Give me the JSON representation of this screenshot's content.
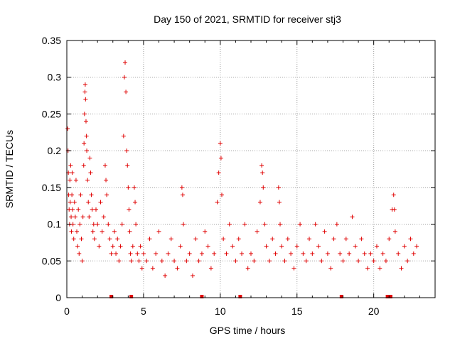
{
  "chart_data": {
    "type": "scatter",
    "title": "Day 150 of 2021, SRMTID for receiver stj3",
    "xlabel": "GPS time / hours",
    "ylabel": "SRMTID / TECUs",
    "xlim": [
      0,
      24
    ],
    "ylim": [
      0,
      0.35
    ],
    "xticks": [
      0,
      5,
      10,
      15,
      20
    ],
    "yticks": [
      0,
      0.05,
      0.1,
      0.15,
      0.2,
      0.25,
      0.3,
      0.35
    ],
    "ytick_labels": [
      "0",
      "0.05",
      "0.1",
      "0.15",
      "0.2",
      "0.25",
      "0.3",
      "0.35"
    ],
    "grid": true,
    "marker": "+",
    "color": "#e00000",
    "gap_markers_x": [
      2.9,
      4.2,
      8.8,
      11.3,
      17.9,
      20.9,
      21.1
    ],
    "series": [
      {
        "name": "SRMTID",
        "points": [
          [
            0.05,
            0.23
          ],
          [
            0.08,
            0.2
          ],
          [
            0.1,
            0.17
          ],
          [
            0.12,
            0.14
          ],
          [
            0.15,
            0.12
          ],
          [
            0.18,
            0.1
          ],
          [
            0.2,
            0.16
          ],
          [
            0.22,
            0.13
          ],
          [
            0.25,
            0.18
          ],
          [
            0.28,
            0.11
          ],
          [
            0.3,
            0.09
          ],
          [
            0.33,
            0.14
          ],
          [
            0.35,
            0.17
          ],
          [
            0.38,
            0.12
          ],
          [
            0.4,
            0.1
          ],
          [
            0.45,
            0.08
          ],
          [
            0.5,
            0.13
          ],
          [
            0.55,
            0.11
          ],
          [
            0.6,
            0.16
          ],
          [
            0.65,
            0.09
          ],
          [
            0.7,
            0.07
          ],
          [
            0.75,
            0.12
          ],
          [
            0.8,
            0.06
          ],
          [
            0.85,
            0.1
          ],
          [
            0.9,
            0.14
          ],
          [
            0.95,
            0.08
          ],
          [
            1.0,
            0.05
          ],
          [
            1.05,
            0.11
          ],
          [
            1.1,
            0.18
          ],
          [
            1.12,
            0.21
          ],
          [
            1.15,
            0.25
          ],
          [
            1.18,
            0.28
          ],
          [
            1.2,
            0.29
          ],
          [
            1.22,
            0.27
          ],
          [
            1.25,
            0.24
          ],
          [
            1.28,
            0.22
          ],
          [
            1.3,
            0.2
          ],
          [
            1.35,
            0.16
          ],
          [
            1.4,
            0.13
          ],
          [
            1.45,
            0.11
          ],
          [
            1.5,
            0.19
          ],
          [
            1.55,
            0.17
          ],
          [
            1.6,
            0.14
          ],
          [
            1.65,
            0.12
          ],
          [
            1.7,
            0.09
          ],
          [
            1.75,
            0.1
          ],
          [
            1.8,
            0.08
          ],
          [
            1.9,
            0.12
          ],
          [
            2.0,
            0.1
          ],
          [
            2.1,
            0.07
          ],
          [
            2.2,
            0.13
          ],
          [
            2.3,
            0.09
          ],
          [
            2.4,
            0.11
          ],
          [
            2.5,
            0.18
          ],
          [
            2.55,
            0.16
          ],
          [
            2.6,
            0.14
          ],
          [
            2.7,
            0.1
          ],
          [
            2.8,
            0.08
          ],
          [
            2.9,
            0.06
          ],
          [
            3.0,
            0.07
          ],
          [
            3.1,
            0.09
          ],
          [
            3.2,
            0.06
          ],
          [
            3.3,
            0.08
          ],
          [
            3.4,
            0.05
          ],
          [
            3.5,
            0.07
          ],
          [
            3.6,
            0.1
          ],
          [
            3.7,
            0.22
          ],
          [
            3.75,
            0.3
          ],
          [
            3.8,
            0.32
          ],
          [
            3.85,
            0.28
          ],
          [
            3.9,
            0.2
          ],
          [
            3.95,
            0.18
          ],
          [
            4.0,
            0.15
          ],
          [
            4.05,
            0.12
          ],
          [
            4.1,
            0.09
          ],
          [
            4.15,
            0.06
          ],
          [
            4.2,
            0.05
          ],
          [
            4.3,
            0.07
          ],
          [
            4.4,
            0.15
          ],
          [
            4.45,
            0.13
          ],
          [
            4.5,
            0.1
          ],
          [
            4.6,
            0.06
          ],
          [
            4.7,
            0.05
          ],
          [
            4.8,
            0.07
          ],
          [
            4.9,
            0.04
          ],
          [
            5.0,
            0.06
          ],
          [
            5.2,
            0.05
          ],
          [
            5.4,
            0.08
          ],
          [
            5.6,
            0.04
          ],
          [
            5.8,
            0.06
          ],
          [
            6.0,
            0.09
          ],
          [
            6.2,
            0.05
          ],
          [
            6.4,
            0.03
          ],
          [
            6.6,
            0.06
          ],
          [
            6.8,
            0.08
          ],
          [
            7.0,
            0.05
          ],
          [
            7.2,
            0.04
          ],
          [
            7.4,
            0.07
          ],
          [
            7.5,
            0.15
          ],
          [
            7.55,
            0.14
          ],
          [
            7.6,
            0.1
          ],
          [
            7.8,
            0.05
          ],
          [
            8.0,
            0.06
          ],
          [
            8.2,
            0.03
          ],
          [
            8.4,
            0.08
          ],
          [
            8.6,
            0.05
          ],
          [
            8.8,
            0.06
          ],
          [
            9.0,
            0.09
          ],
          [
            9.2,
            0.07
          ],
          [
            9.4,
            0.04
          ],
          [
            9.6,
            0.06
          ],
          [
            9.8,
            0.13
          ],
          [
            9.9,
            0.17
          ],
          [
            10.0,
            0.21
          ],
          [
            10.05,
            0.19
          ],
          [
            10.1,
            0.14
          ],
          [
            10.2,
            0.08
          ],
          [
            10.4,
            0.06
          ],
          [
            10.6,
            0.1
          ],
          [
            10.8,
            0.07
          ],
          [
            11.0,
            0.05
          ],
          [
            11.2,
            0.08
          ],
          [
            11.4,
            0.06
          ],
          [
            11.6,
            0.1
          ],
          [
            11.8,
            0.04
          ],
          [
            12.0,
            0.06
          ],
          [
            12.2,
            0.05
          ],
          [
            12.4,
            0.09
          ],
          [
            12.6,
            0.13
          ],
          [
            12.7,
            0.18
          ],
          [
            12.75,
            0.17
          ],
          [
            12.8,
            0.15
          ],
          [
            12.9,
            0.1
          ],
          [
            13.0,
            0.07
          ],
          [
            13.2,
            0.05
          ],
          [
            13.4,
            0.08
          ],
          [
            13.6,
            0.06
          ],
          [
            13.8,
            0.15
          ],
          [
            13.85,
            0.13
          ],
          [
            13.9,
            0.1
          ],
          [
            14.0,
            0.07
          ],
          [
            14.2,
            0.05
          ],
          [
            14.4,
            0.08
          ],
          [
            14.6,
            0.06
          ],
          [
            14.8,
            0.04
          ],
          [
            15.0,
            0.07
          ],
          [
            15.2,
            0.1
          ],
          [
            15.4,
            0.06
          ],
          [
            15.6,
            0.05
          ],
          [
            15.8,
            0.08
          ],
          [
            16.0,
            0.06
          ],
          [
            16.2,
            0.1
          ],
          [
            16.4,
            0.07
          ],
          [
            16.6,
            0.05
          ],
          [
            16.8,
            0.09
          ],
          [
            17.0,
            0.06
          ],
          [
            17.2,
            0.04
          ],
          [
            17.4,
            0.08
          ],
          [
            17.6,
            0.1
          ],
          [
            17.8,
            0.06
          ],
          [
            18.0,
            0.05
          ],
          [
            18.2,
            0.08
          ],
          [
            18.4,
            0.06
          ],
          [
            18.6,
            0.11
          ],
          [
            18.8,
            0.07
          ],
          [
            19.0,
            0.05
          ],
          [
            19.2,
            0.08
          ],
          [
            19.4,
            0.06
          ],
          [
            19.6,
            0.04
          ],
          [
            19.8,
            0.06
          ],
          [
            20.0,
            0.05
          ],
          [
            20.2,
            0.07
          ],
          [
            20.4,
            0.04
          ],
          [
            20.6,
            0.06
          ],
          [
            20.8,
            0.05
          ],
          [
            21.0,
            0.08
          ],
          [
            21.2,
            0.12
          ],
          [
            21.3,
            0.14
          ],
          [
            21.35,
            0.12
          ],
          [
            21.4,
            0.09
          ],
          [
            21.6,
            0.06
          ],
          [
            21.8,
            0.04
          ],
          [
            22.0,
            0.07
          ],
          [
            22.2,
            0.05
          ],
          [
            22.4,
            0.08
          ],
          [
            22.6,
            0.06
          ],
          [
            22.8,
            0.07
          ]
        ]
      }
    ]
  }
}
